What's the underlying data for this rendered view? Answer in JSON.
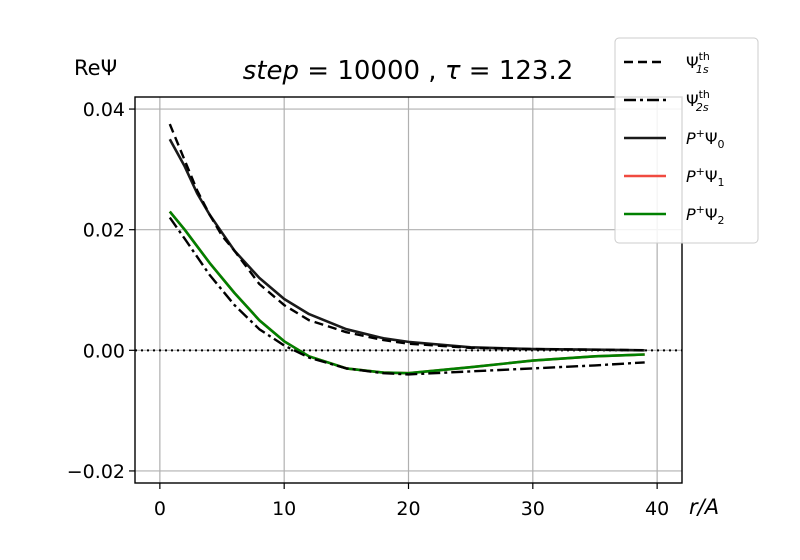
{
  "chart_data": {
    "type": "line",
    "title": "step = 10000, τ = 123.2",
    "title_parts": {
      "step_label": "step",
      "step_value": "10000",
      "tau_label": "τ",
      "tau_value": "123.2"
    },
    "ylabel": "ReΨ",
    "xlabel": "r/A",
    "xlim": [
      -2,
      42
    ],
    "ylim": [
      -0.022,
      0.042
    ],
    "xticks": [
      0,
      10,
      20,
      30,
      40
    ],
    "xtick_labels": [
      "0",
      "10",
      "20",
      "30",
      "40"
    ],
    "yticks": [
      -0.02,
      0.0,
      0.02,
      0.04
    ],
    "ytick_labels": [
      "−0.02",
      "0.00",
      "0.02",
      "0.04"
    ],
    "grid": true,
    "zero_line": {
      "y": 0,
      "style": "dotted",
      "color": "#000000"
    },
    "legend_placement": "upper-right",
    "series": [
      {
        "legend": "Ψ1s th",
        "legend_base": "Ψ",
        "legend_sub": "1s",
        "legend_sup": "th",
        "style": "dashed",
        "color": "#000000",
        "x": [
          0.8,
          2,
          3,
          4,
          5,
          6,
          8,
          10,
          12,
          15,
          18,
          20,
          25,
          30,
          35,
          39
        ],
        "y": [
          0.0375,
          0.0315,
          0.0265,
          0.0225,
          0.019,
          0.0165,
          0.011,
          0.0075,
          0.005,
          0.003,
          0.0017,
          0.0011,
          0.0004,
          0.0002,
          0.0001,
          0.0
        ]
      },
      {
        "legend": "Ψ2s th",
        "legend_base": "Ψ",
        "legend_sub": "2s",
        "legend_sup": "th",
        "style": "dashdot",
        "color": "#000000",
        "x": [
          0.8,
          2,
          4,
          6,
          8,
          10,
          12,
          15,
          18,
          20,
          25,
          30,
          35,
          39
        ],
        "y": [
          0.022,
          0.0185,
          0.0125,
          0.0075,
          0.0035,
          0.0008,
          -0.0012,
          -0.003,
          -0.0038,
          -0.004,
          -0.0035,
          -0.003,
          -0.0025,
          -0.002
        ]
      },
      {
        "legend": "P+Ψ0",
        "legend_base": "P",
        "legend_sup": "+",
        "legend_psi": "Ψ",
        "legend_sub": "0",
        "style": "solid",
        "color": "#1a1a1a",
        "x": [
          0.8,
          2,
          3,
          4,
          5,
          6,
          8,
          10,
          12,
          15,
          18,
          20,
          25,
          30,
          35,
          39
        ],
        "y": [
          0.035,
          0.0305,
          0.026,
          0.0225,
          0.0195,
          0.0165,
          0.012,
          0.0085,
          0.006,
          0.0035,
          0.002,
          0.0014,
          0.0005,
          0.0002,
          0.0001,
          0.0
        ]
      },
      {
        "legend": "P+Ψ1",
        "legend_base": "P",
        "legend_sup": "+",
        "legend_psi": "Ψ",
        "legend_sub": "1",
        "style": "solid",
        "color": "#f04a40",
        "x": [
          0.8,
          2,
          4,
          6,
          8,
          10,
          12,
          15,
          18,
          20,
          25,
          30,
          35,
          39
        ],
        "y": [
          0.023,
          0.02,
          0.0145,
          0.0095,
          0.005,
          0.0015,
          -0.001,
          -0.003,
          -0.0037,
          -0.0038,
          -0.0028,
          -0.0017,
          -0.001,
          -0.0007
        ]
      },
      {
        "legend": "P+Ψ2",
        "legend_base": "P",
        "legend_sup": "+",
        "legend_psi": "Ψ",
        "legend_sub": "2",
        "style": "solid",
        "color": "#008000",
        "x": [
          0.8,
          2,
          4,
          6,
          8,
          10,
          12,
          15,
          18,
          20,
          25,
          30,
          35,
          39
        ],
        "y": [
          0.023,
          0.02,
          0.0145,
          0.0095,
          0.005,
          0.0015,
          -0.001,
          -0.003,
          -0.0037,
          -0.0038,
          -0.0028,
          -0.0017,
          -0.001,
          -0.0007
        ]
      }
    ]
  }
}
